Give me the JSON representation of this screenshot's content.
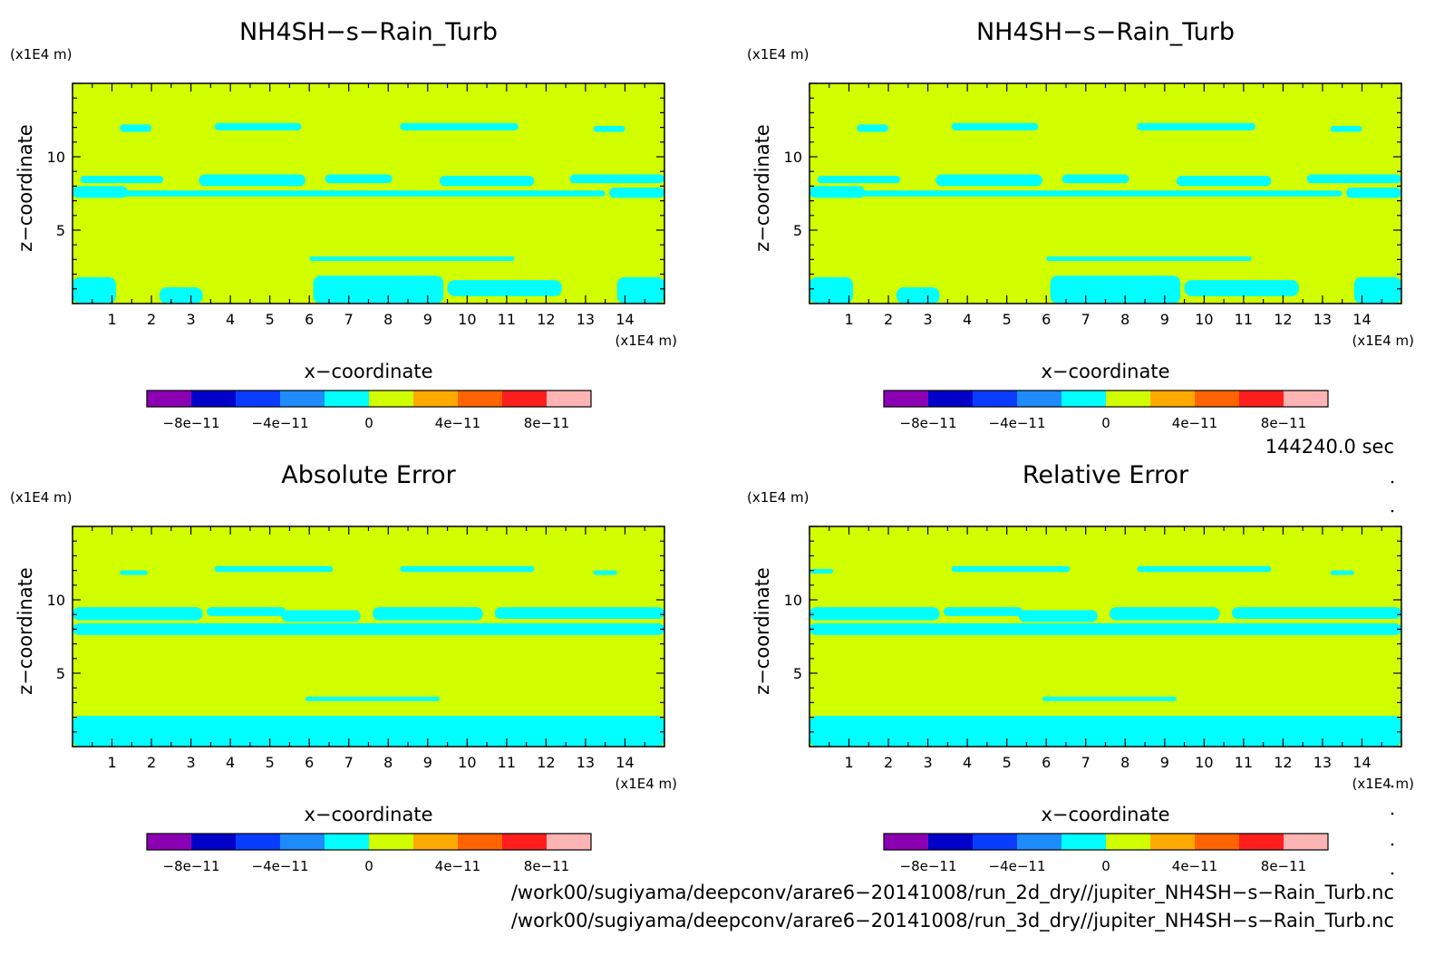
{
  "chart_data": [
    {
      "type": "heatmap",
      "title": "NH4SH−s−Rain_Turb",
      "xlabel": "x−coordinate",
      "ylabel": "z−coordinate",
      "x_unit": "(x1E4 m)",
      "y_unit": "(x1E4 m)",
      "xlim": [
        0,
        15
      ],
      "ylim": [
        0,
        15
      ],
      "x_ticks": [
        "1",
        "2",
        "3",
        "4",
        "5",
        "6",
        "7",
        "8",
        "9",
        "10",
        "11",
        "12",
        "13",
        "14"
      ],
      "y_ticks": [
        "5",
        "10"
      ],
      "background_level": "0 to 2e-11",
      "patch_level": "-2e-11 to 0",
      "patches": [
        {
          "x": [
            1.2,
            2.0
          ],
          "z": [
            11.7,
            12.2
          ]
        },
        {
          "x": [
            3.6,
            5.8
          ],
          "z": [
            11.8,
            12.3
          ]
        },
        {
          "x": [
            8.3,
            11.3
          ],
          "z": [
            11.8,
            12.3
          ]
        },
        {
          "x": [
            13.2,
            14.0
          ],
          "z": [
            11.7,
            12.1
          ]
        },
        {
          "x": [
            0.2,
            2.3
          ],
          "z": [
            8.2,
            8.7
          ]
        },
        {
          "x": [
            3.2,
            5.9
          ],
          "z": [
            8.0,
            8.8
          ]
        },
        {
          "x": [
            6.4,
            8.1
          ],
          "z": [
            8.2,
            8.8
          ]
        },
        {
          "x": [
            9.3,
            11.7
          ],
          "z": [
            8.0,
            8.7
          ]
        },
        {
          "x": [
            12.6,
            15.0
          ],
          "z": [
            8.2,
            8.8
          ]
        },
        {
          "x": [
            0.0,
            1.4
          ],
          "z": [
            7.2,
            8.0
          ]
        },
        {
          "x": [
            1.0,
            13.5
          ],
          "z": [
            7.3,
            7.7
          ]
        },
        {
          "x": [
            13.6,
            15.0
          ],
          "z": [
            7.2,
            7.9
          ]
        },
        {
          "x": [
            6.0,
            11.2
          ],
          "z": [
            2.9,
            3.2
          ]
        },
        {
          "x": [
            0.0,
            1.1
          ],
          "z": [
            0.0,
            1.8
          ]
        },
        {
          "x": [
            2.2,
            3.3
          ],
          "z": [
            0.0,
            1.1
          ]
        },
        {
          "x": [
            6.1,
            9.4
          ],
          "z": [
            0.0,
            1.9
          ]
        },
        {
          "x": [
            9.5,
            12.4
          ],
          "z": [
            0.5,
            1.6
          ]
        },
        {
          "x": [
            13.8,
            15.0
          ],
          "z": [
            0.0,
            1.8
          ]
        }
      ]
    },
    {
      "type": "heatmap",
      "title": "NH4SH−s−Rain_Turb",
      "xlabel": "x−coordinate",
      "ylabel": "z−coordinate",
      "x_unit": "(x1E4 m)",
      "y_unit": "(x1E4 m)",
      "xlim": [
        0,
        15
      ],
      "ylim": [
        0,
        15
      ],
      "x_ticks": [
        "1",
        "2",
        "3",
        "4",
        "5",
        "6",
        "7",
        "8",
        "9",
        "10",
        "11",
        "12",
        "13",
        "14"
      ],
      "y_ticks": [
        "5",
        "10"
      ],
      "background_level": "0 to 2e-11",
      "patch_level": "-2e-11 to 0",
      "patches": [
        {
          "x": [
            1.2,
            2.0
          ],
          "z": [
            11.7,
            12.2
          ]
        },
        {
          "x": [
            3.6,
            5.8
          ],
          "z": [
            11.8,
            12.3
          ]
        },
        {
          "x": [
            8.3,
            11.3
          ],
          "z": [
            11.8,
            12.3
          ]
        },
        {
          "x": [
            13.2,
            14.0
          ],
          "z": [
            11.7,
            12.1
          ]
        },
        {
          "x": [
            0.2,
            2.3
          ],
          "z": [
            8.2,
            8.7
          ]
        },
        {
          "x": [
            3.2,
            5.9
          ],
          "z": [
            8.0,
            8.8
          ]
        },
        {
          "x": [
            6.4,
            8.1
          ],
          "z": [
            8.2,
            8.8
          ]
        },
        {
          "x": [
            9.3,
            11.7
          ],
          "z": [
            8.0,
            8.7
          ]
        },
        {
          "x": [
            12.6,
            15.0
          ],
          "z": [
            8.2,
            8.8
          ]
        },
        {
          "x": [
            0.0,
            1.4
          ],
          "z": [
            7.2,
            8.0
          ]
        },
        {
          "x": [
            1.0,
            13.5
          ],
          "z": [
            7.3,
            7.7
          ]
        },
        {
          "x": [
            13.6,
            15.0
          ],
          "z": [
            7.2,
            7.9
          ]
        },
        {
          "x": [
            6.0,
            11.2
          ],
          "z": [
            2.9,
            3.2
          ]
        },
        {
          "x": [
            0.0,
            1.1
          ],
          "z": [
            0.0,
            1.8
          ]
        },
        {
          "x": [
            2.2,
            3.3
          ],
          "z": [
            0.0,
            1.1
          ]
        },
        {
          "x": [
            6.1,
            9.4
          ],
          "z": [
            0.0,
            1.9
          ]
        },
        {
          "x": [
            9.5,
            12.4
          ],
          "z": [
            0.5,
            1.6
          ]
        },
        {
          "x": [
            13.8,
            15.0
          ],
          "z": [
            0.0,
            1.8
          ]
        }
      ]
    },
    {
      "type": "heatmap",
      "title": "Absolute Error",
      "xlabel": "x−coordinate",
      "ylabel": "z−coordinate",
      "x_unit": "(x1E4 m)",
      "y_unit": "(x1E4 m)",
      "xlim": [
        0,
        15
      ],
      "ylim": [
        0,
        15
      ],
      "x_ticks": [
        "1",
        "2",
        "3",
        "4",
        "5",
        "6",
        "7",
        "8",
        "9",
        "10",
        "11",
        "12",
        "13",
        "14"
      ],
      "y_ticks": [
        "5",
        "10"
      ],
      "background_level": "0 to 2e-11",
      "patch_level": "-2e-11 to 0",
      "patches": [
        {
          "x": [
            1.2,
            1.9
          ],
          "z": [
            11.7,
            12.0
          ]
        },
        {
          "x": [
            3.6,
            6.6
          ],
          "z": [
            11.9,
            12.3
          ]
        },
        {
          "x": [
            8.3,
            11.7
          ],
          "z": [
            11.9,
            12.3
          ]
        },
        {
          "x": [
            13.2,
            13.8
          ],
          "z": [
            11.7,
            12.0
          ]
        },
        {
          "x": [
            0.0,
            3.3
          ],
          "z": [
            8.6,
            9.5
          ]
        },
        {
          "x": [
            3.4,
            5.4
          ],
          "z": [
            8.9,
            9.5
          ]
        },
        {
          "x": [
            5.3,
            7.3
          ],
          "z": [
            8.5,
            9.3
          ]
        },
        {
          "x": [
            7.6,
            10.4
          ],
          "z": [
            8.6,
            9.5
          ]
        },
        {
          "x": [
            10.7,
            15.0
          ],
          "z": [
            8.7,
            9.5
          ]
        },
        {
          "x": [
            0.0,
            15.0
          ],
          "z": [
            7.6,
            8.4
          ]
        },
        {
          "x": [
            5.9,
            9.3
          ],
          "z": [
            3.1,
            3.4
          ]
        },
        {
          "x": [
            0.0,
            15.0
          ],
          "z": [
            0.0,
            2.1
          ]
        }
      ]
    },
    {
      "type": "heatmap",
      "title": "Relative Error",
      "xlabel": "x−coordinate",
      "ylabel": "z−coordinate",
      "x_unit": "(x1E4 m)",
      "y_unit": "(x1E4 m)",
      "xlim": [
        0,
        15
      ],
      "ylim": [
        0,
        15
      ],
      "x_ticks": [
        "1",
        "2",
        "3",
        "4",
        "5",
        "6",
        "7",
        "8",
        "9",
        "10",
        "11",
        "12",
        "13",
        "14"
      ],
      "y_ticks": [
        "5",
        "10"
      ],
      "background_level": "0 to 2e-11",
      "patch_level": "-2e-11 to 0",
      "patches": [
        {
          "x": [
            0.0,
            0.6
          ],
          "z": [
            11.8,
            12.1
          ]
        },
        {
          "x": [
            3.6,
            6.6
          ],
          "z": [
            11.9,
            12.3
          ]
        },
        {
          "x": [
            8.3,
            11.7
          ],
          "z": [
            11.9,
            12.3
          ]
        },
        {
          "x": [
            13.2,
            13.8
          ],
          "z": [
            11.7,
            12.0
          ]
        },
        {
          "x": [
            0.0,
            3.3
          ],
          "z": [
            8.6,
            9.5
          ]
        },
        {
          "x": [
            3.4,
            5.4
          ],
          "z": [
            8.9,
            9.5
          ]
        },
        {
          "x": [
            5.3,
            7.3
          ],
          "z": [
            8.5,
            9.3
          ]
        },
        {
          "x": [
            7.6,
            10.4
          ],
          "z": [
            8.6,
            9.5
          ]
        },
        {
          "x": [
            10.7,
            15.0
          ],
          "z": [
            8.7,
            9.5
          ]
        },
        {
          "x": [
            0.0,
            15.0
          ],
          "z": [
            7.6,
            8.4
          ]
        },
        {
          "x": [
            5.9,
            9.3
          ],
          "z": [
            3.1,
            3.4
          ]
        },
        {
          "x": [
            0.0,
            15.0
          ],
          "z": [
            0.0,
            2.1
          ]
        }
      ]
    }
  ],
  "colorbar": {
    "colors": [
      "#8c00b4",
      "#0000c8",
      "#0a3cff",
      "#1e8cff",
      "#00ffff",
      "#d2ff00",
      "#ffaa00",
      "#ff6400",
      "#ff1e1e",
      "#ffb4b4"
    ],
    "labels": [
      "−8e−11",
      "−4e−11",
      "0",
      "4e−11",
      "8e−11"
    ]
  },
  "colors": {
    "background_fill": "#d2ff00",
    "patch_fill": "#00ffff"
  },
  "time_label": "144240.0 sec",
  "file_paths": [
    "/work00/sugiyama/deepconv/arare6−20141008/run_2d_dry//jupiter_NH4SH−s−Rain_Turb.nc",
    "/work00/sugiyama/deepconv/arare6−20141008/run_3d_dry//jupiter_NH4SH−s−Rain_Turb.nc"
  ]
}
